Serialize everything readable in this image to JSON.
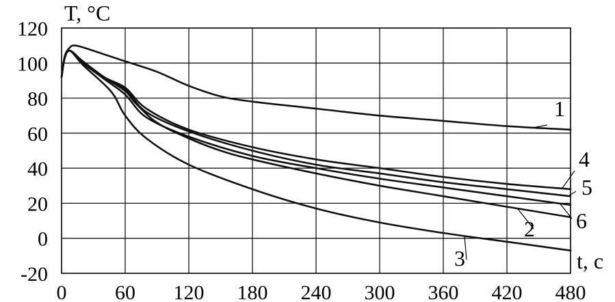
{
  "chart_data": {
    "type": "line",
    "ylabel": "T, °C",
    "xlabel": "t, c",
    "xlim": [
      0,
      480
    ],
    "ylim": [
      -20,
      120
    ],
    "x_ticks": [
      "0",
      "60",
      "120",
      "180",
      "240",
      "300",
      "360",
      "420",
      "480"
    ],
    "y_ticks": [
      "120",
      "100",
      "80",
      "60",
      "40",
      "20",
      "0",
      "-20"
    ],
    "grid": true,
    "series": [
      {
        "name": "1",
        "x": [
          0,
          3,
          8,
          12,
          20,
          40,
          60,
          90,
          120,
          150,
          180,
          240,
          300,
          360,
          420,
          480
        ],
        "y": [
          92,
          104,
          109,
          110,
          109,
          105,
          101,
          95,
          87,
          81,
          78,
          74,
          70,
          67,
          64,
          62
        ]
      },
      {
        "name": "2",
        "x": [
          0,
          3,
          8,
          20,
          40,
          60,
          70,
          90,
          120,
          150,
          180,
          240,
          300,
          360,
          420,
          480
        ],
        "y": [
          92,
          103,
          107,
          101,
          92,
          84,
          77,
          66,
          57,
          50,
          45,
          37,
          30,
          24,
          18,
          12
        ]
      },
      {
        "name": "3",
        "x": [
          0,
          3,
          8,
          20,
          40,
          50,
          60,
          80,
          120,
          180,
          240,
          300,
          360,
          420,
          480
        ],
        "y": [
          92,
          103,
          107,
          99,
          88,
          81,
          70,
          57,
          42,
          28,
          17,
          9,
          3,
          -2,
          -7
        ]
      },
      {
        "name": "4",
        "x": [
          0,
          3,
          8,
          20,
          40,
          60,
          80,
          120,
          180,
          240,
          300,
          360,
          420,
          480
        ],
        "y": [
          92,
          103,
          107,
          101,
          92,
          86,
          74,
          62,
          52,
          45,
          40,
          35,
          31,
          28
        ]
      },
      {
        "name": "5",
        "x": [
          0,
          3,
          8,
          20,
          40,
          60,
          80,
          120,
          180,
          240,
          300,
          360,
          420,
          480
        ],
        "y": [
          92,
          103,
          107,
          101,
          92,
          85,
          72,
          61,
          50,
          42,
          37,
          32,
          28,
          24
        ]
      },
      {
        "name": "6",
        "x": [
          0,
          3,
          8,
          20,
          40,
          60,
          80,
          120,
          180,
          240,
          300,
          360,
          420,
          480
        ],
        "y": [
          92,
          103,
          107,
          100,
          91,
          82,
          69,
          58,
          47,
          40,
          34,
          29,
          24,
          19
        ]
      }
    ]
  }
}
